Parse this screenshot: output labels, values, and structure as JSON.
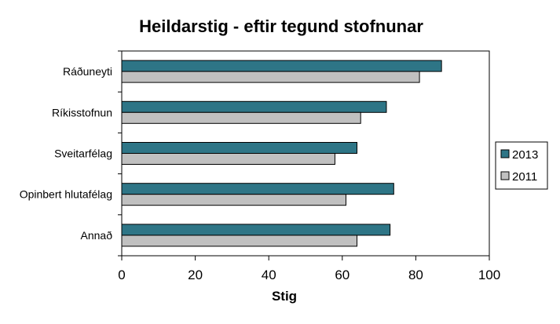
{
  "colors": {
    "series_2013": "#2e7586",
    "series_2011": "#c0c0c0",
    "bar_stroke": "#000000",
    "axis": "#000000"
  },
  "chart_data": {
    "type": "bar",
    "orientation": "horizontal",
    "title": "Heildarstig - eftir tegund stofnunar",
    "xlabel": "Stig",
    "ylabel": "",
    "categories": [
      "Ráðuneyti",
      "Ríkisstofnun",
      "Sveitarfélag",
      "Opinbert hlutafélag",
      "Annað"
    ],
    "series": [
      {
        "name": "2013",
        "values": [
          87,
          72,
          64,
          74,
          73
        ]
      },
      {
        "name": "2011",
        "values": [
          81,
          65,
          58,
          61,
          64
        ]
      }
    ],
    "xlim": [
      0,
      100
    ],
    "x_ticks": [
      "0",
      "20",
      "40",
      "60",
      "80",
      "100"
    ],
    "grid": false,
    "legend_position": "right"
  }
}
